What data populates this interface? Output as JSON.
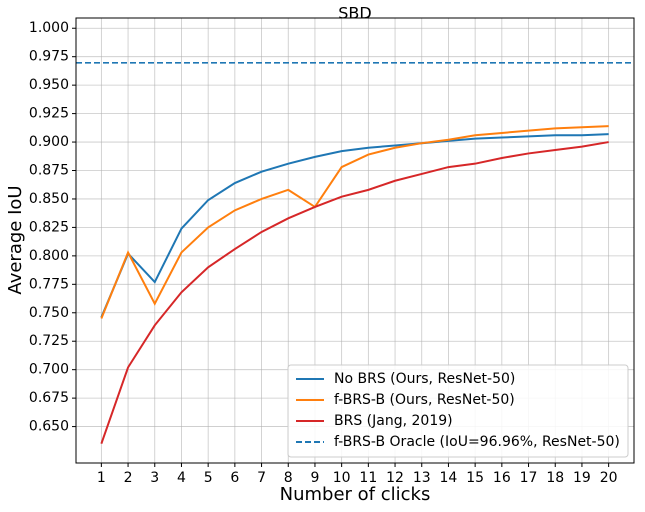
{
  "chart_data": {
    "type": "line",
    "title": "SBD",
    "x_label": "Number of clicks",
    "y_label": "Average IoU",
    "x": [
      1,
      2,
      3,
      4,
      5,
      6,
      7,
      8,
      9,
      10,
      11,
      12,
      13,
      14,
      15,
      16,
      17,
      18,
      19,
      20
    ],
    "series": [
      {
        "name": "No BRS (Ours, ResNet-50)",
        "color": "#1f77b4",
        "values": [
          0.746,
          0.802,
          0.777,
          0.824,
          0.849,
          0.864,
          0.874,
          0.881,
          0.887,
          0.892,
          0.895,
          0.897,
          0.899,
          0.901,
          0.903,
          0.904,
          0.905,
          0.906,
          0.906,
          0.907
        ]
      },
      {
        "name": "f-BRS-B (Ours, ResNet-50)",
        "color": "#ff7f0e",
        "values": [
          0.745,
          0.803,
          0.758,
          0.803,
          0.825,
          0.84,
          0.85,
          0.858,
          0.843,
          0.878,
          0.889,
          0.895,
          0.899,
          0.902,
          0.906,
          0.908,
          0.91,
          0.912,
          0.913,
          0.914
        ]
      },
      {
        "name": "BRS (Jang, 2019)",
        "color": "#d62728",
        "values": [
          0.635,
          0.702,
          0.739,
          0.768,
          0.79,
          0.806,
          0.821,
          0.833,
          0.843,
          0.852,
          0.858,
          0.866,
          0.872,
          0.878,
          0.881,
          0.886,
          0.89,
          0.893,
          0.896,
          0.9
        ]
      }
    ],
    "reference_lines": [
      {
        "name": "f-BRS-B Oracle (IoU=96.96%, ResNet-50)",
        "value": 0.9696,
        "color": "#1f77b4",
        "dashed": true
      }
    ],
    "xlim": [
      0.05,
      20.95
    ],
    "ylim": [
      0.618,
      1.009
    ],
    "xticks": [
      1,
      2,
      3,
      4,
      5,
      6,
      7,
      8,
      9,
      10,
      11,
      12,
      13,
      14,
      15,
      16,
      17,
      18,
      19,
      20
    ],
    "yticks": [
      {
        "value": 0.65,
        "label": "0.650"
      },
      {
        "value": 0.675,
        "label": "0.675"
      },
      {
        "value": 0.7,
        "label": "0.700"
      },
      {
        "value": 0.725,
        "label": "0.725"
      },
      {
        "value": 0.75,
        "label": "0.750"
      },
      {
        "value": 0.775,
        "label": "0.775"
      },
      {
        "value": 0.8,
        "label": "0.800"
      },
      {
        "value": 0.825,
        "label": "0.825"
      },
      {
        "value": 0.85,
        "label": "0.850"
      },
      {
        "value": 0.875,
        "label": "0.875"
      },
      {
        "value": 0.9,
        "label": "0.900"
      },
      {
        "value": 0.925,
        "label": "0.925"
      },
      {
        "value": 0.95,
        "label": "0.950"
      },
      {
        "value": 0.975,
        "label": "0.975"
      },
      {
        "value": 1.0,
        "label": "1.000"
      }
    ],
    "grid": true,
    "legend": "lower right"
  }
}
